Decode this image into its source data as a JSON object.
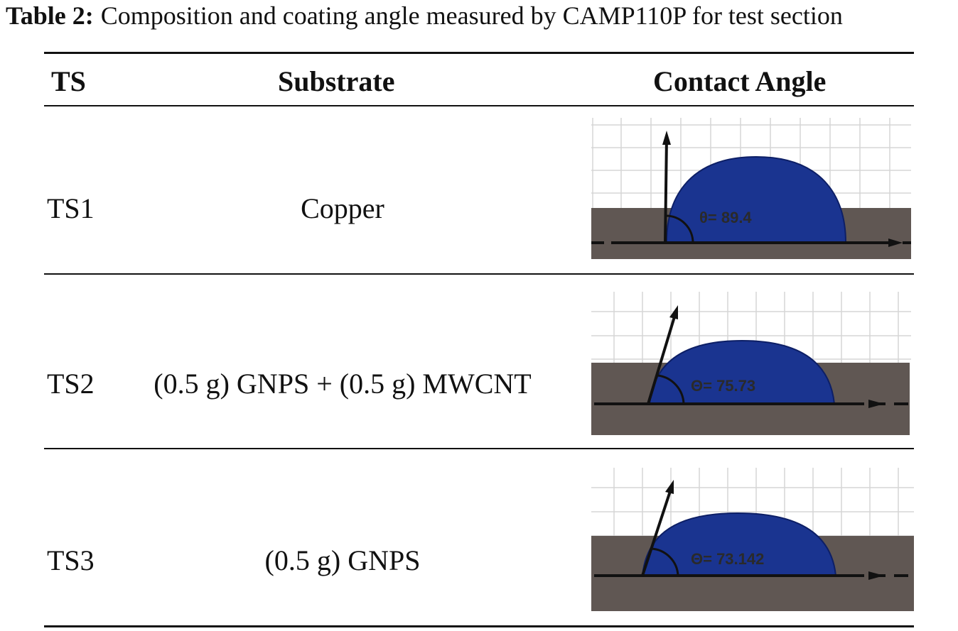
{
  "caption": {
    "label": "Table 2:",
    "text": "Composition and coating angle measured by CAMP110P for test section"
  },
  "table": {
    "headers": {
      "ts": "TS",
      "substrate": "Substrate",
      "contact_angle": "Contact Angle"
    },
    "rows": [
      {
        "ts": "TS1",
        "substrate": "Copper",
        "angle_label": "θ= 89.4"
      },
      {
        "ts": "TS2",
        "substrate": "(0.5 g) GNPS + (0.5 g) MWCNT",
        "angle_label": "Θ= 75.73"
      },
      {
        "ts": "TS3",
        "substrate": "(0.5 g) GNPS",
        "angle_label": "Θ= 73.142"
      }
    ]
  },
  "colors": {
    "droplet": "#1a3490",
    "surface": "#605753",
    "grid": "#d6d6d6",
    "text": "#111111"
  }
}
